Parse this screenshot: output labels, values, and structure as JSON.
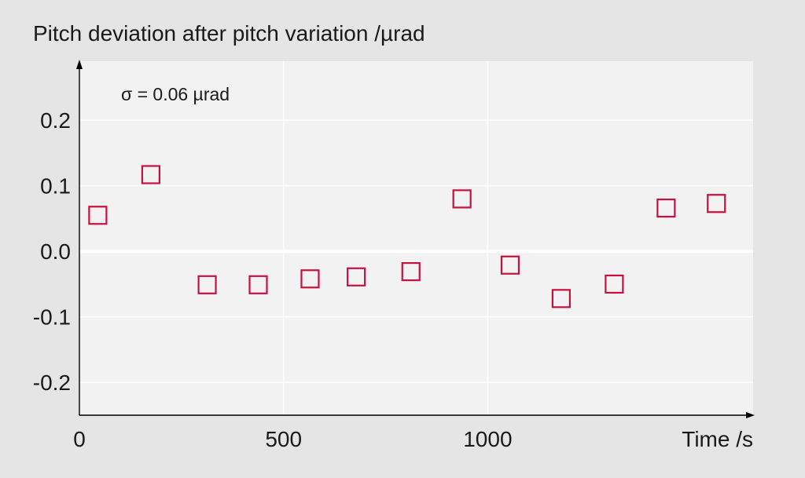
{
  "chart_data": {
    "type": "scatter",
    "title": "Pitch deviation after pitch variation /µrad",
    "xlabel": "Time /s",
    "ylabel": "",
    "annotation": "σ = 0.06 µrad",
    "xlim": [
      0,
      1650
    ],
    "ylim": [
      -0.25,
      0.29
    ],
    "xticks": [
      0,
      500,
      1000
    ],
    "xtick_labels": [
      "0",
      "500",
      "1000"
    ],
    "yticks": [
      0.2,
      0.1,
      0.0,
      -0.1,
      -0.2
    ],
    "ytick_labels": [
      "0.2",
      "0.1",
      "0.0",
      "-0.1",
      "-0.2"
    ],
    "grid": true,
    "marker": "hollow-square",
    "colors": {
      "marker": "#c8103e",
      "plot_background": "#f2f2f2",
      "page_background": "#e5e5e5",
      "grid": "#ffffff"
    },
    "series": [
      {
        "x": [
          45,
          175,
          313,
          438,
          565,
          678,
          812,
          937,
          1055,
          1180,
          1310,
          1437,
          1560
        ],
        "y": [
          0.055,
          0.117,
          -0.051,
          -0.051,
          -0.042,
          -0.039,
          -0.031,
          0.08,
          -0.021,
          -0.072,
          -0.05,
          0.066,
          0.073
        ]
      }
    ]
  }
}
